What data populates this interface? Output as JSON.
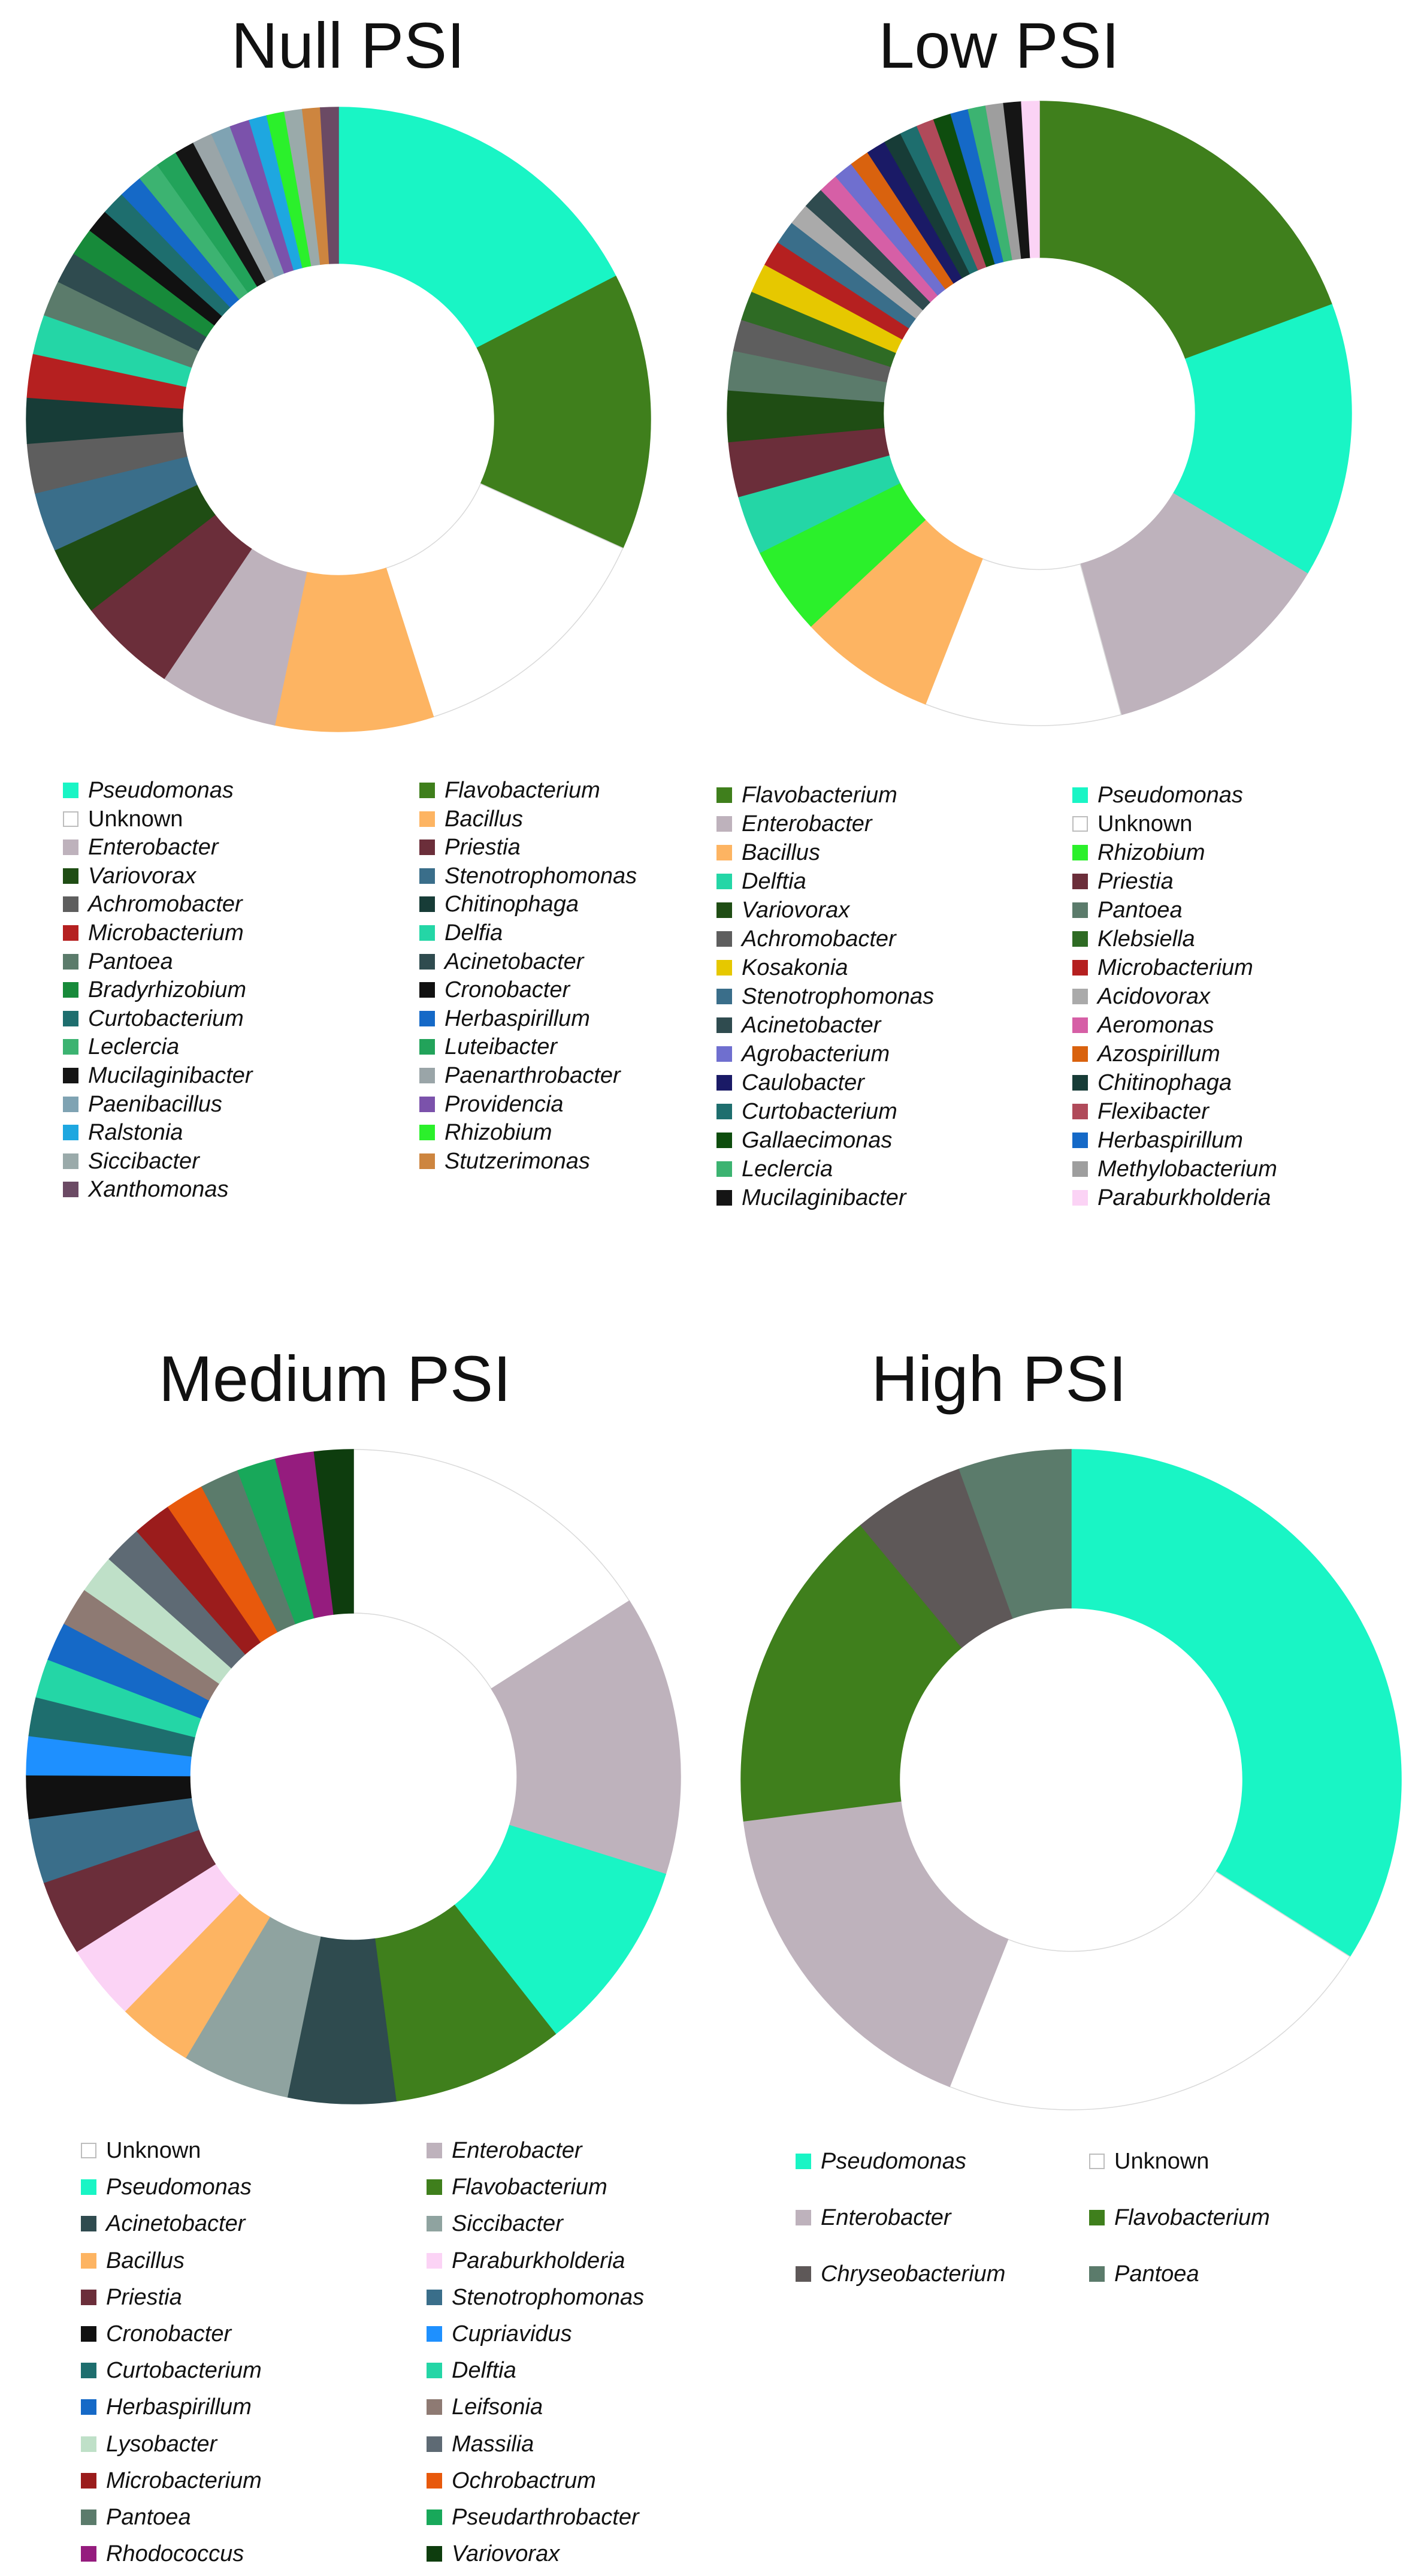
{
  "chart_data": [
    {
      "type": "pie",
      "title": "Null PSI",
      "slices": [
        {
          "label": "Pseudomonas",
          "value": 17.0,
          "color": "#19F5C5"
        },
        {
          "label": "Flavobacterium",
          "value": 14.0,
          "color": "#3F7F1C"
        },
        {
          "label": "Unknown",
          "value": 13.0,
          "color": "#FFFFFF"
        },
        {
          "label": "Bacillus",
          "value": 8.0,
          "color": "#FDB462"
        },
        {
          "label": "Enterobacter",
          "value": 6.0,
          "color": "#BEB2BC"
        },
        {
          "label": "Priestia",
          "value": 5.0,
          "color": "#6B2E3A"
        },
        {
          "label": "Variovorax",
          "value": 3.5,
          "color": "#1F4D14"
        },
        {
          "label": "Stenotrophomonas",
          "value": 3.0,
          "color": "#3A6E8A"
        },
        {
          "label": "Achromobacter",
          "value": 2.5,
          "color": "#5E5E5E"
        },
        {
          "label": "Chitinophaga",
          "value": 2.3,
          "color": "#173C37"
        },
        {
          "label": "Microbacterium",
          "value": 2.2,
          "color": "#B52020"
        },
        {
          "label": "Delftia",
          "value": 2.0,
          "color": "#24D6A6"
        },
        {
          "label": "Pantoea",
          "value": 1.8,
          "color": "#5B7B6B"
        },
        {
          "label": "Acinetobacter",
          "value": 1.6,
          "color": "#2F4B4F"
        },
        {
          "label": "Bradyrhizobium",
          "value": 1.4,
          "color": "#178A3A"
        },
        {
          "label": "Cronobacter",
          "value": 1.2,
          "color": "#111111"
        },
        {
          "label": "Curtobacterium",
          "value": 1.2,
          "color": "#1E6E6E"
        },
        {
          "label": "Herbaspirillum",
          "value": 1.2,
          "color": "#1569C7"
        },
        {
          "label": "Leclercia",
          "value": 1.1,
          "color": "#3CB371"
        },
        {
          "label": "Luteibacter",
          "value": 1.1,
          "color": "#22A35A"
        },
        {
          "label": "Mucilaginibacter",
          "value": 1.0,
          "color": "#151515"
        },
        {
          "label": "Paenarthrobacter",
          "value": 1.0,
          "color": "#9AA5A8"
        },
        {
          "label": "Paenibacillus",
          "value": 1.0,
          "color": "#7FA3B3"
        },
        {
          "label": "Providencia",
          "value": 1.0,
          "color": "#7B52AB"
        },
        {
          "label": "Ralstonia",
          "value": 0.9,
          "color": "#1EA7E0"
        },
        {
          "label": "Rhizobium",
          "value": 0.9,
          "color": "#2BF02B"
        },
        {
          "label": "Siccibacter",
          "value": 0.9,
          "color": "#9AAAAA"
        },
        {
          "label": "Stutzerimonas",
          "value": 0.9,
          "color": "#CD853F"
        },
        {
          "label": "Xanthomonas",
          "value": 0.9,
          "color": "#6B4A64"
        }
      ]
    },
    {
      "type": "pie",
      "title": "Low PSI",
      "slices": [
        {
          "label": "Flavobacterium",
          "value": 19.0,
          "color": "#3F7F1C"
        },
        {
          "label": "Pseudomonas",
          "value": 14.0,
          "color": "#19F5C5"
        },
        {
          "label": "Enterobacter",
          "value": 12.0,
          "color": "#BEB2BC"
        },
        {
          "label": "Unknown",
          "value": 10.0,
          "color": "#FFFFFF"
        },
        {
          "label": "Bacillus",
          "value": 7.0,
          "color": "#FDB462"
        },
        {
          "label": "Rhizobium",
          "value": 4.5,
          "color": "#2BF02B"
        },
        {
          "label": "Delftia",
          "value": 3.0,
          "color": "#24D6A6"
        },
        {
          "label": "Priestia",
          "value": 2.8,
          "color": "#6B2E3A"
        },
        {
          "label": "Variovorax",
          "value": 2.6,
          "color": "#1F4D14"
        },
        {
          "label": "Pantoea",
          "value": 2.0,
          "color": "#5B7B6B"
        },
        {
          "label": "Achromobacter",
          "value": 1.6,
          "color": "#5E5E5E"
        },
        {
          "label": "Klebsiella",
          "value": 1.5,
          "color": "#2E6B24"
        },
        {
          "label": "Kosakonia",
          "value": 1.5,
          "color": "#E6C800"
        },
        {
          "label": "Microbacterium",
          "value": 1.3,
          "color": "#B52020"
        },
        {
          "label": "Stenotrophomonas",
          "value": 1.2,
          "color": "#3A6E8A"
        },
        {
          "label": "Acidovorax",
          "value": 1.1,
          "color": "#AAAAAA"
        },
        {
          "label": "Acinetobacter",
          "value": 1.1,
          "color": "#2F4B4F"
        },
        {
          "label": "Aeromonas",
          "value": 1.0,
          "color": "#D65FA6"
        },
        {
          "label": "Agrobacterium",
          "value": 1.0,
          "color": "#6F6FCF"
        },
        {
          "label": "Azospirillum",
          "value": 1.0,
          "color": "#D9620E"
        },
        {
          "label": "Caulobacter",
          "value": 1.0,
          "color": "#1A1A66"
        },
        {
          "label": "Chitinophaga",
          "value": 0.9,
          "color": "#173C37"
        },
        {
          "label": "Curtobacterium",
          "value": 0.9,
          "color": "#1E6E6E"
        },
        {
          "label": "Flexibacter",
          "value": 0.9,
          "color": "#B04A5A"
        },
        {
          "label": "Gallaecimonas",
          "value": 0.9,
          "color": "#0E4D0E"
        },
        {
          "label": "Herbaspirillum",
          "value": 0.9,
          "color": "#1569C7"
        },
        {
          "label": "Leclercia",
          "value": 0.9,
          "color": "#3CB371"
        },
        {
          "label": "Methylobacterium",
          "value": 0.9,
          "color": "#9E9E9E"
        },
        {
          "label": "Mucilaginibacter",
          "value": 0.9,
          "color": "#151515"
        },
        {
          "label": "Paraburkholderia",
          "value": 0.9,
          "color": "#FBD3F5"
        }
      ]
    },
    {
      "type": "pie",
      "title": "Medium PSI",
      "slices": [
        {
          "label": "Unknown",
          "value": 15.0,
          "color": "#FFFFFF"
        },
        {
          "label": "Enterobacter",
          "value": 13.0,
          "color": "#BEB2BC"
        },
        {
          "label": "Pseudomonas",
          "value": 9.0,
          "color": "#19F5C5"
        },
        {
          "label": "Flavobacterium",
          "value": 8.0,
          "color": "#3F7F1C"
        },
        {
          "label": "Acinetobacter",
          "value": 5.0,
          "color": "#2F4B4F"
        },
        {
          "label": "Siccibacter",
          "value": 5.0,
          "color": "#8FA3A0"
        },
        {
          "label": "Bacillus",
          "value": 3.5,
          "color": "#FDB462"
        },
        {
          "label": "Paraburkholderia",
          "value": 3.5,
          "color": "#FBD3F5"
        },
        {
          "label": "Priestia",
          "value": 3.5,
          "color": "#6B2E3A"
        },
        {
          "label": "Stenotrophomonas",
          "value": 3.0,
          "color": "#3A6E8A"
        },
        {
          "label": "Cronobacter",
          "value": 2.0,
          "color": "#111111"
        },
        {
          "label": "Cupriavidus",
          "value": 1.8,
          "color": "#1E90FF"
        },
        {
          "label": "Curtobacterium",
          "value": 1.8,
          "color": "#1E6E6E"
        },
        {
          "label": "Delftia",
          "value": 1.8,
          "color": "#24D6A6"
        },
        {
          "label": "Herbaspirillum",
          "value": 1.8,
          "color": "#1569C7"
        },
        {
          "label": "Leifsonia",
          "value": 1.8,
          "color": "#8E7A73"
        },
        {
          "label": "Lysobacter",
          "value": 1.8,
          "color": "#BFE0C8"
        },
        {
          "label": "Massilia",
          "value": 1.8,
          "color": "#5E6A74"
        },
        {
          "label": "Microbacterium",
          "value": 1.8,
          "color": "#9B1C1C"
        },
        {
          "label": "Ochrobactrum",
          "value": 1.8,
          "color": "#E8590C"
        },
        {
          "label": "Pantoea",
          "value": 1.8,
          "color": "#5B7B6B"
        },
        {
          "label": "Pseudarthrobacter",
          "value": 1.8,
          "color": "#18A85A"
        },
        {
          "label": "Rhodococcus",
          "value": 1.8,
          "color": "#951C7E"
        },
        {
          "label": "Variovorax",
          "value": 1.8,
          "color": "#0E3D0E"
        }
      ]
    },
    {
      "type": "pie",
      "title": "High PSI",
      "slices": [
        {
          "label": "Pseudomonas",
          "value": 34.0,
          "color": "#19F5C5"
        },
        {
          "label": "Unknown",
          "value": 22.0,
          "color": "#FFFFFF"
        },
        {
          "label": "Enterobacter",
          "value": 17.0,
          "color": "#BEB2BC"
        },
        {
          "label": "Flavobacterium",
          "value": 16.0,
          "color": "#3F7F1C"
        },
        {
          "label": "Chryseobacterium",
          "value": 5.5,
          "color": "#5E5858"
        },
        {
          "label": "Pantoea",
          "value": 5.5,
          "color": "#5B7B6B"
        }
      ]
    }
  ],
  "legends": [
    {
      "columns": [
        [
          {
            "label": "Pseudomonas",
            "color": "#19F5C5"
          },
          {
            "label": "Unknown",
            "color": "#FFFFFF",
            "plain": true
          },
          {
            "label": "Enterobacter",
            "color": "#BEB2BC"
          },
          {
            "label": "Variovorax",
            "color": "#1F4D14"
          },
          {
            "label": "Achromobacter",
            "color": "#5E5E5E"
          },
          {
            "label": "Microbacterium",
            "color": "#B52020"
          },
          {
            "label": "Pantoea",
            "color": "#5B7B6B"
          },
          {
            "label": "Bradyrhizobium",
            "color": "#178A3A"
          },
          {
            "label": "Curtobacterium",
            "color": "#1E6E6E"
          },
          {
            "label": "Leclercia",
            "color": "#3CB371"
          },
          {
            "label": "Mucilaginibacter",
            "color": "#151515"
          },
          {
            "label": "Paenibacillus",
            "color": "#7FA3B3"
          },
          {
            "label": "Ralstonia",
            "color": "#1EA7E0"
          },
          {
            "label": "Siccibacter",
            "color": "#9AAAAA"
          },
          {
            "label": "Xanthomonas",
            "color": "#6B4A64"
          }
        ],
        [
          {
            "label": "Flavobacterium",
            "color": "#3F7F1C"
          },
          {
            "label": "Bacillus",
            "color": "#FDB462"
          },
          {
            "label": "Priestia",
            "color": "#6B2E3A"
          },
          {
            "label": "Stenotrophomonas",
            "color": "#3A6E8A"
          },
          {
            "label": "Chitinophaga",
            "color": "#173C37"
          },
          {
            "label": "Delfia",
            "color": "#24D6A6"
          },
          {
            "label": "Acinetobacter",
            "color": "#2F4B4F"
          },
          {
            "label": "Cronobacter",
            "color": "#111111"
          },
          {
            "label": "Herbaspirillum",
            "color": "#1569C7"
          },
          {
            "label": "Luteibacter",
            "color": "#22A35A"
          },
          {
            "label": "Paenarthrobacter",
            "color": "#9AA5A8"
          },
          {
            "label": "Providencia",
            "color": "#7B52AB"
          },
          {
            "label": "Rhizobium",
            "color": "#2BF02B"
          },
          {
            "label": "Stutzerimonas",
            "color": "#CD853F"
          }
        ]
      ]
    },
    {
      "columns": [
        [
          {
            "label": "Flavobacterium",
            "color": "#3F7F1C"
          },
          {
            "label": "Enterobacter",
            "color": "#BEB2BC"
          },
          {
            "label": "Bacillus",
            "color": "#FDB462"
          },
          {
            "label": "Delftia",
            "color": "#24D6A6"
          },
          {
            "label": "Variovorax",
            "color": "#1F4D14"
          },
          {
            "label": "Achromobacter",
            "color": "#5E5E5E"
          },
          {
            "label": "Kosakonia",
            "color": "#E6C800"
          },
          {
            "label": "Stenotrophomonas",
            "color": "#3A6E8A"
          },
          {
            "label": "Acinetobacter",
            "color": "#2F4B4F"
          },
          {
            "label": "Agrobacterium",
            "color": "#6F6FCF"
          },
          {
            "label": "Caulobacter",
            "color": "#1A1A66"
          },
          {
            "label": "Curtobacterium",
            "color": "#1E6E6E"
          },
          {
            "label": "Gallaecimonas",
            "color": "#0E4D0E"
          },
          {
            "label": "Leclercia",
            "color": "#3CB371"
          },
          {
            "label": "Mucilaginibacter",
            "color": "#151515"
          }
        ],
        [
          {
            "label": "Pseudomonas",
            "color": "#19F5C5"
          },
          {
            "label": "Unknown",
            "color": "#FFFFFF",
            "plain": true
          },
          {
            "label": "Rhizobium",
            "color": "#2BF02B"
          },
          {
            "label": "Priestia",
            "color": "#6B2E3A"
          },
          {
            "label": "Pantoea",
            "color": "#5B7B6B"
          },
          {
            "label": "Klebsiella",
            "color": "#2E6B24"
          },
          {
            "label": "Microbacterium",
            "color": "#B52020"
          },
          {
            "label": "Acidovorax",
            "color": "#AAAAAA"
          },
          {
            "label": "Aeromonas",
            "color": "#D65FA6"
          },
          {
            "label": "Azospirillum",
            "color": "#D9620E"
          },
          {
            "label": "Chitinophaga",
            "color": "#173C37"
          },
          {
            "label": "Flexibacter",
            "color": "#B04A5A"
          },
          {
            "label": "Herbaspirillum",
            "color": "#1569C7"
          },
          {
            "label": "Methylobacterium",
            "color": "#9E9E9E"
          },
          {
            "label": "Paraburkholderia",
            "color": "#FBD3F5"
          }
        ]
      ]
    },
    {
      "columns": [
        [
          {
            "label": "Unknown",
            "color": "#FFFFFF",
            "plain": true
          },
          {
            "label": "Pseudomonas",
            "color": "#19F5C5"
          },
          {
            "label": "Acinetobacter",
            "color": "#2F4B4F"
          },
          {
            "label": "Bacillus",
            "color": "#FDB462"
          },
          {
            "label": "Priestia",
            "color": "#6B2E3A"
          },
          {
            "label": "Cronobacter",
            "color": "#111111"
          },
          {
            "label": "Curtobacterium",
            "color": "#1E6E6E"
          },
          {
            "label": "Herbaspirillum",
            "color": "#1569C7"
          },
          {
            "label": "Lysobacter",
            "color": "#BFE0C8"
          },
          {
            "label": "Microbacterium",
            "color": "#9B1C1C"
          },
          {
            "label": "Pantoea",
            "color": "#5B7B6B"
          },
          {
            "label": "Rhodococcus",
            "color": "#951C7E"
          }
        ],
        [
          {
            "label": "Enterobacter",
            "color": "#BEB2BC"
          },
          {
            "label": "Flavobacterium",
            "color": "#3F7F1C"
          },
          {
            "label": "Siccibacter",
            "color": "#8FA3A0"
          },
          {
            "label": "Paraburkholderia",
            "color": "#FBD3F5"
          },
          {
            "label": "Stenotrophomonas",
            "color": "#3A6E8A"
          },
          {
            "label": "Cupriavidus",
            "color": "#1E90FF"
          },
          {
            "label": "Delftia",
            "color": "#24D6A6"
          },
          {
            "label": "Leifsonia",
            "color": "#8E7A73"
          },
          {
            "label": "Massilia",
            "color": "#5E6A74"
          },
          {
            "label": "Ochrobactrum",
            "color": "#E8590C"
          },
          {
            "label": "Pseudarthrobacter",
            "color": "#18A85A"
          },
          {
            "label": "Variovorax",
            "color": "#0E3D0E"
          }
        ]
      ]
    },
    {
      "columns": [
        [
          {
            "label": "Pseudomonas",
            "color": "#19F5C5"
          },
          {
            "label": "Enterobacter",
            "color": "#BEB2BC"
          },
          {
            "label": "Chryseobacterium",
            "color": "#5E5858"
          }
        ],
        [
          {
            "label": "Unknown",
            "color": "#FFFFFF",
            "plain": true
          },
          {
            "label": "Flavobacterium",
            "color": "#3F7F1C"
          },
          {
            "label": "Pantoea",
            "color": "#5B7B6B"
          }
        ]
      ]
    }
  ]
}
